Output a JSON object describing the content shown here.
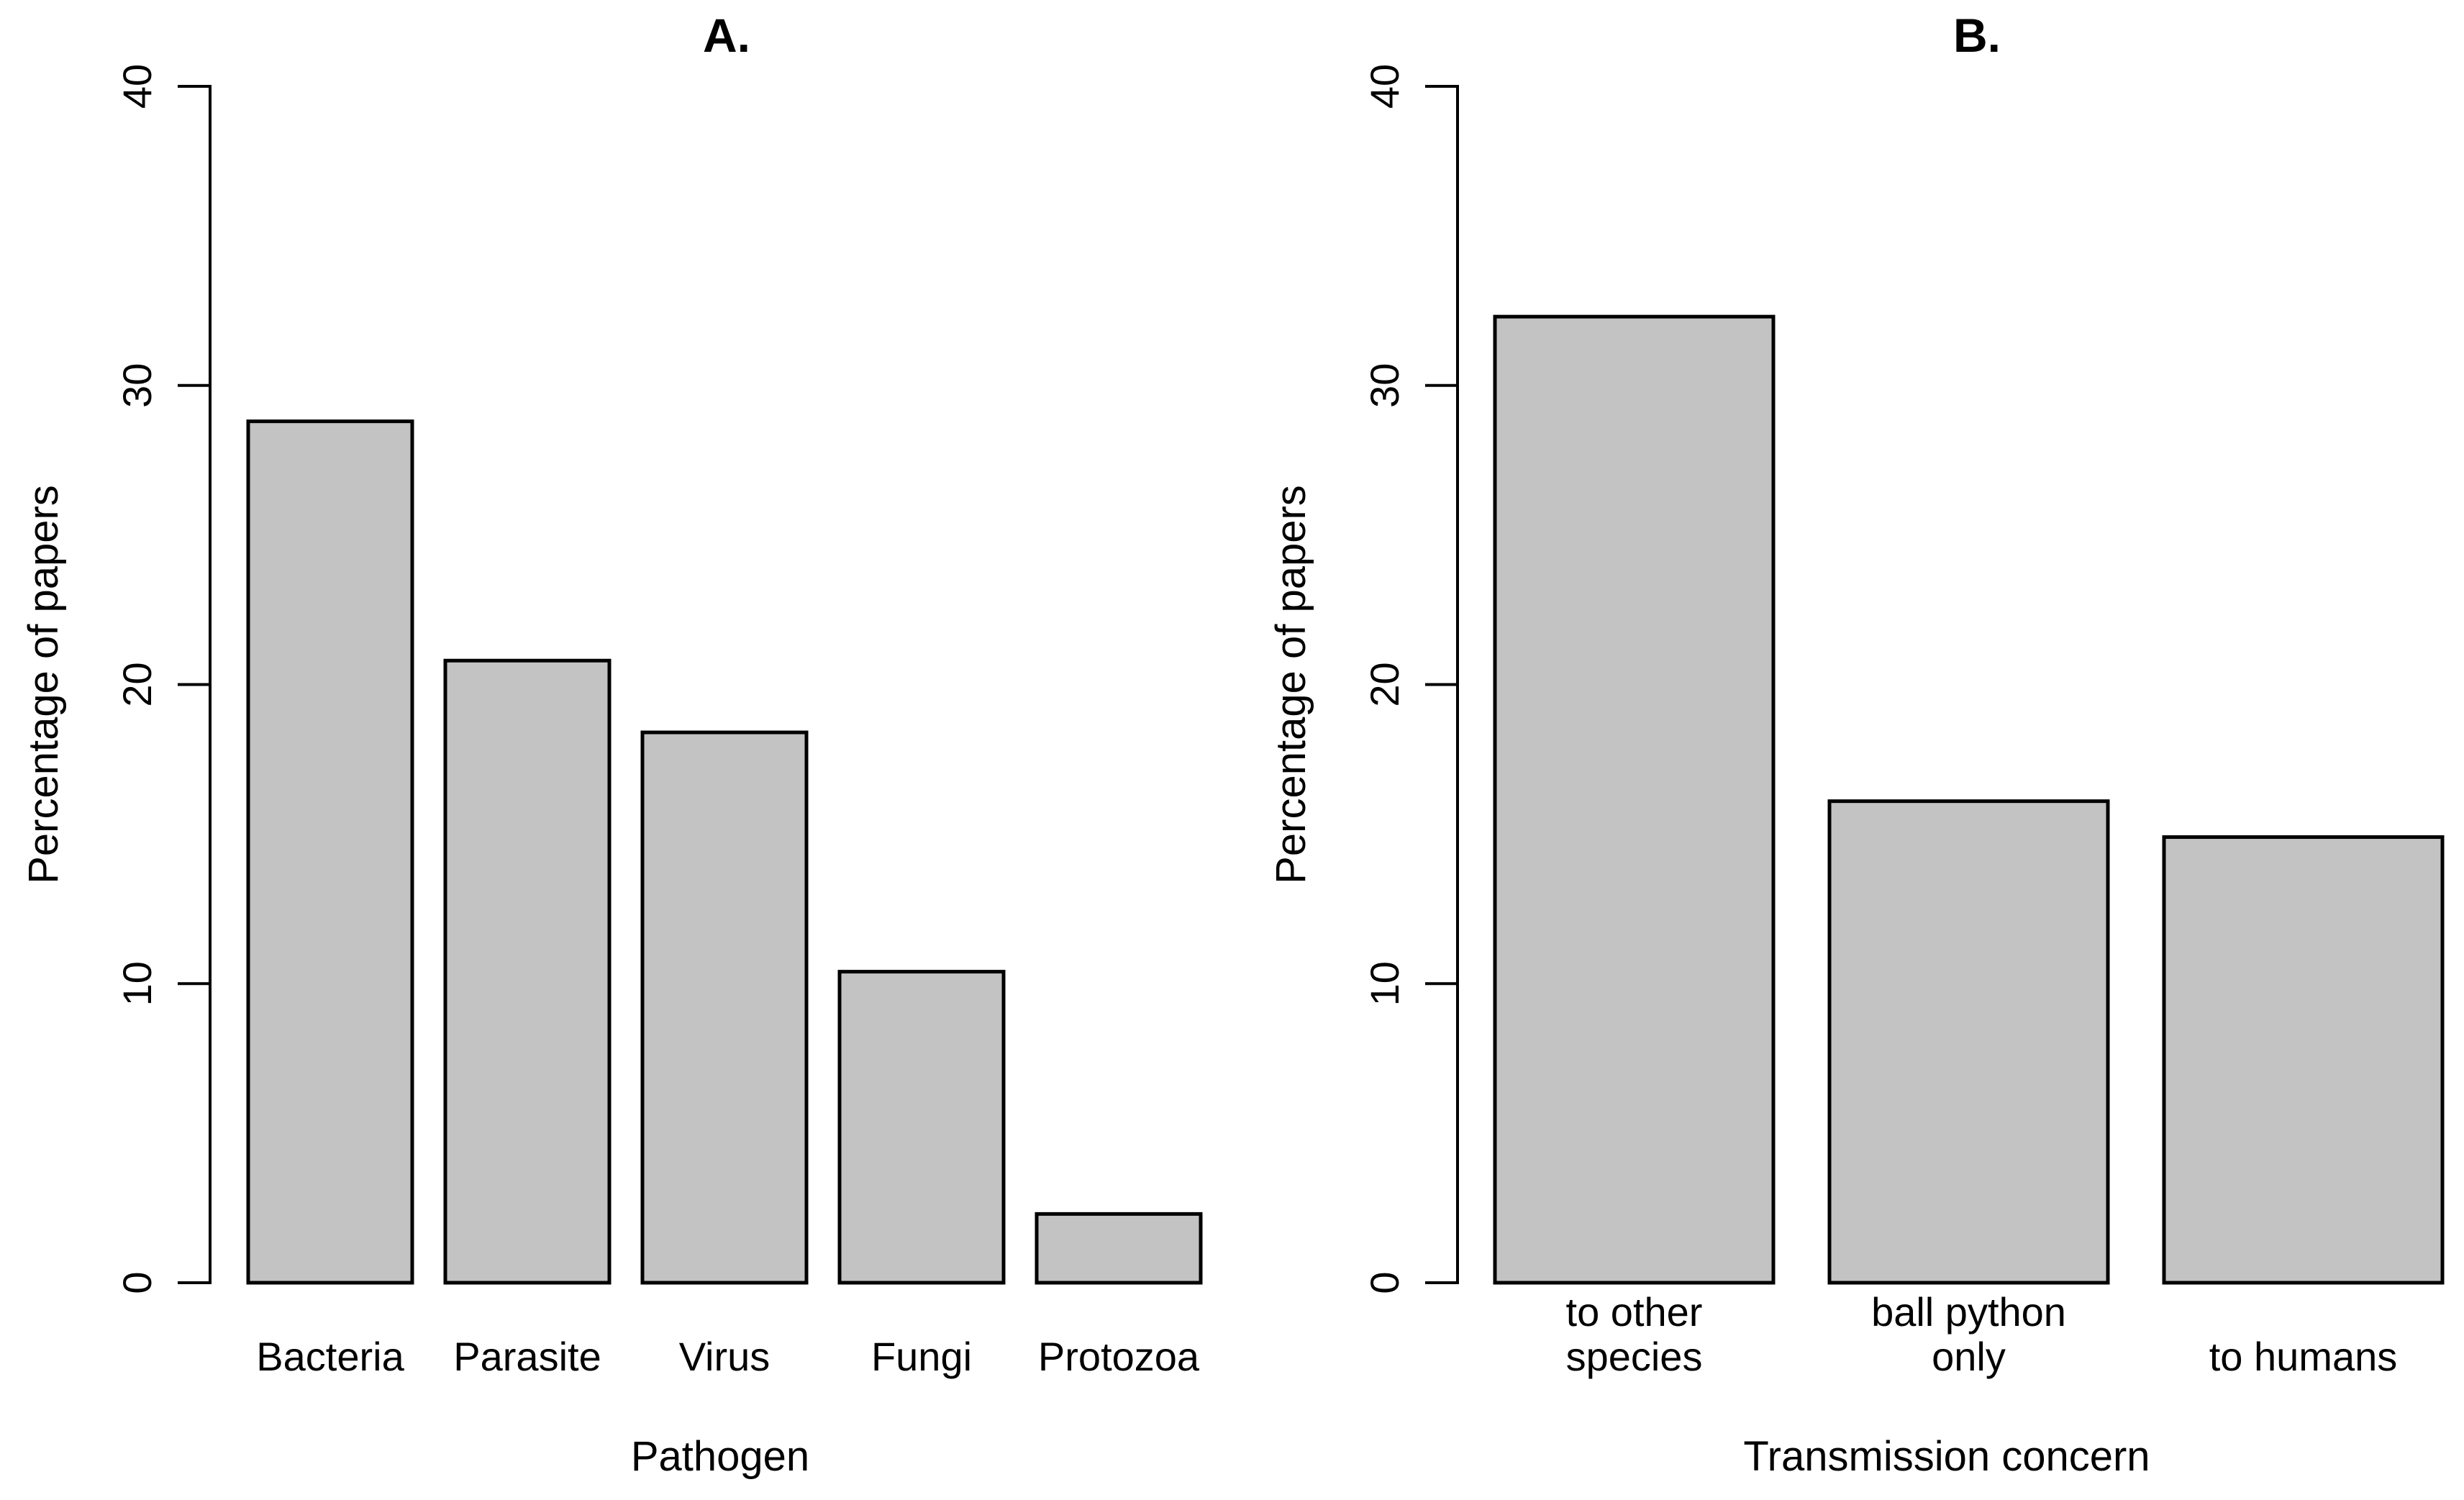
{
  "figure": {
    "background": "#ffffff",
    "bar_fill": "#c3c3c3",
    "bar_border": "#000000",
    "axis_color": "#000000",
    "text_color": "#000000"
  },
  "chart_data": [
    {
      "type": "bar",
      "title": "A.",
      "categories": [
        "Bacteria",
        "Parasite",
        "Virus",
        "Fungi",
        "Protozoa"
      ],
      "values": [
        28.8,
        20.8,
        18.4,
        10.4,
        2.3
      ],
      "xlabel": "Pathogen",
      "ylabel": "Percentage of papers",
      "ylim": [
        0,
        40
      ],
      "yticks": [
        0,
        10,
        20,
        30,
        40
      ],
      "grid": false,
      "legend": false,
      "bar_color": "#c3c3c3"
    },
    {
      "type": "bar",
      "title": "B.",
      "categories": [
        "to other\nspecies",
        "ball python\nonly",
        "to humans"
      ],
      "values": [
        32.3,
        16.1,
        14.9
      ],
      "xlabel": "Transmission concern",
      "ylabel": "Percentage of papers",
      "ylim": [
        0,
        40
      ],
      "yticks": [
        0,
        10,
        20,
        30,
        40
      ],
      "grid": false,
      "legend": false,
      "bar_color": "#c3c3c3"
    }
  ]
}
